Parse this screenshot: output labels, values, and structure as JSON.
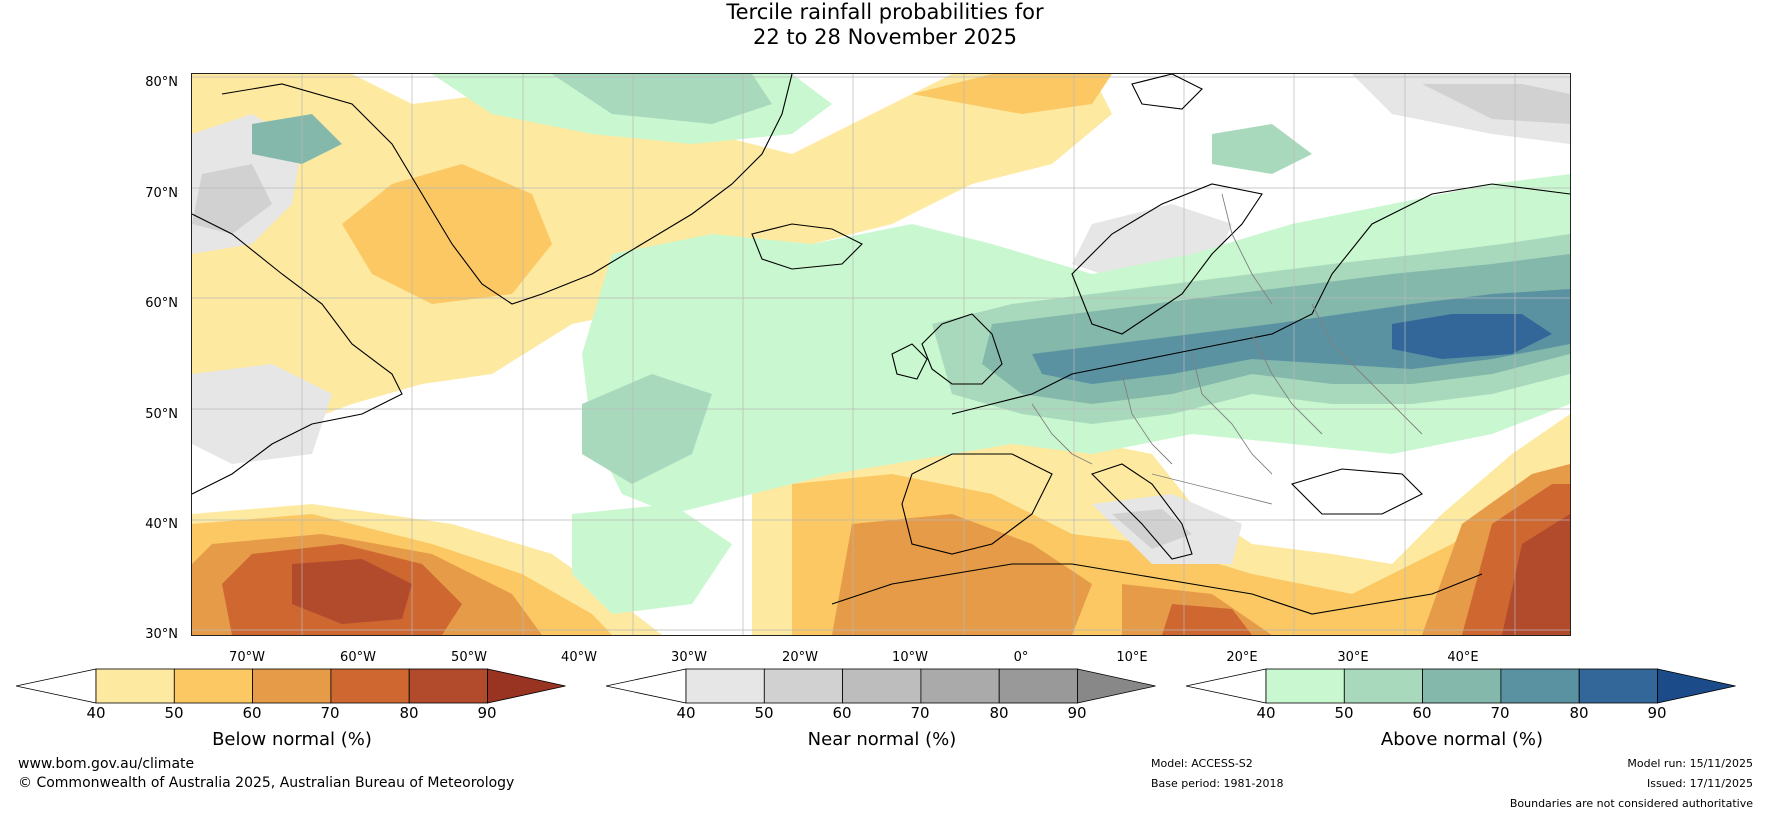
{
  "title": {
    "line1": "Tercile rainfall probabilities for",
    "line2": "22 to 28 November 2025"
  },
  "map": {
    "lat_labels": [
      "80°N",
      "70°N",
      "60°N",
      "50°N",
      "40°N",
      "30°N"
    ],
    "lon_labels": [
      "70°W",
      "60°W",
      "50°W",
      "40°W",
      "30°W",
      "20°W",
      "10°W",
      "0°",
      "10°E",
      "20°E",
      "30°E",
      "40°E"
    ],
    "colors": {
      "below": [
        "#fde9a0",
        "#fbc863",
        "#e69b48",
        "#cf6731",
        "#b24a2c",
        "#9a3422"
      ],
      "near": [
        "#e6e6e6",
        "#d1d1d1",
        "#bdbdbd",
        "#aaaaaa",
        "#999999",
        "#888888"
      ],
      "above": [
        "#c9f7cf",
        "#a8d9bc",
        "#83b8ab",
        "#5a92a2",
        "#336799",
        "#1b4b88"
      ],
      "coastline": "#000000",
      "border": "#808080",
      "grid": "#b8b8b8"
    }
  },
  "colorbars": [
    {
      "title": "Below normal (%)",
      "ticks": [
        "40",
        "50",
        "60",
        "70",
        "80",
        "90"
      ]
    },
    {
      "title": "Near normal (%)",
      "ticks": [
        "40",
        "50",
        "60",
        "70",
        "80",
        "90"
      ]
    },
    {
      "title": "Above normal (%)",
      "ticks": [
        "40",
        "50",
        "60",
        "70",
        "80",
        "90"
      ]
    }
  ],
  "footer": {
    "website": "www.bom.gov.au/climate",
    "copyright": "© Commonwealth of Australia 2025, Australian Bureau of Meteorology",
    "model": "Model: ACCESS-S2",
    "base_period": "Base period: 1981-2018",
    "model_run": "Model run: 15/11/2025",
    "issued": "Issued: 17/11/2025",
    "disclaimer": "Boundaries are not considered authoritative"
  }
}
